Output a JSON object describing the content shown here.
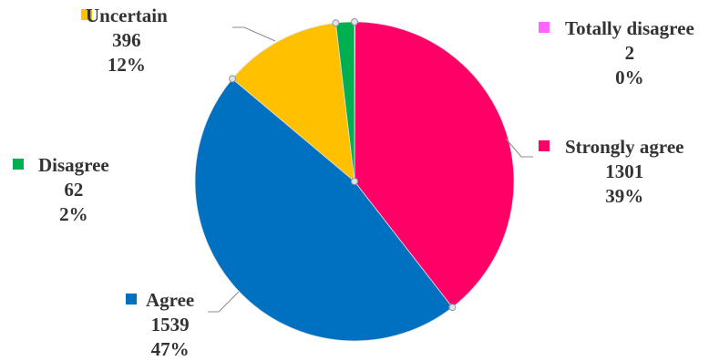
{
  "chart_data": {
    "type": "pie",
    "title": "",
    "slices": [
      {
        "label": "Totally disagree",
        "value": 2,
        "percent": "0%",
        "color": "#FF66FF"
      },
      {
        "label": "Strongly agree",
        "value": 1301,
        "percent": "39%",
        "color": "#FF0066"
      },
      {
        "label": "Agree",
        "value": 1539,
        "percent": "47%",
        "color": "#0070C0"
      },
      {
        "label": "Uncertain",
        "value": 396,
        "percent": "12%",
        "color": "#FFC000"
      },
      {
        "label": "Disagree",
        "value": 62,
        "percent": "2%",
        "color": "#00B050"
      }
    ],
    "legend": "none",
    "data_labels": "outside"
  }
}
